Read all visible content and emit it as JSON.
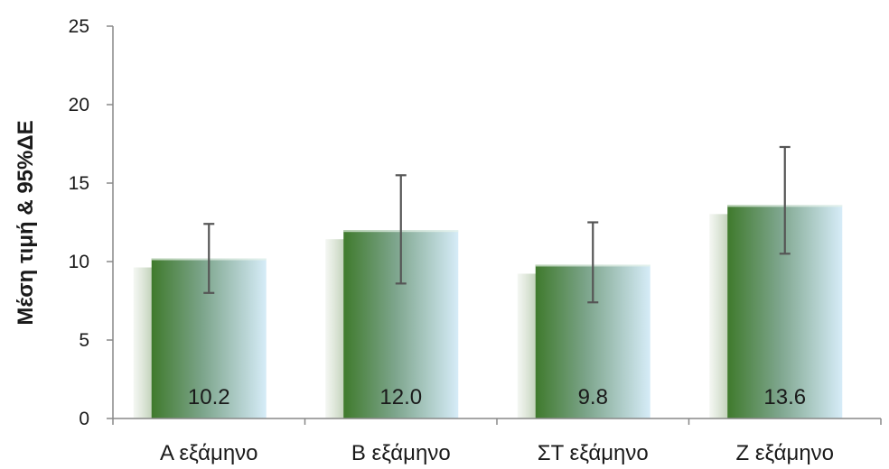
{
  "chart_data": {
    "type": "bar",
    "title": "",
    "xlabel": "",
    "ylabel": "Μέση τιμή & 95%ΔΕ",
    "ylim": [
      0,
      25
    ],
    "yticks": [
      0,
      5,
      10,
      15,
      20,
      25
    ],
    "grid": false,
    "legend": "none",
    "categories": [
      "Α εξάμηνο",
      "Β εξάμηνο",
      "ΣΤ εξάμηνο",
      "Ζ εξάμηνο"
    ],
    "values": [
      10.2,
      12.0,
      9.8,
      13.6
    ],
    "value_labels": [
      "10.2",
      "12.0",
      "9.8",
      "13.6"
    ],
    "error_low": [
      8.0,
      8.6,
      7.4,
      10.5
    ],
    "error_high": [
      12.4,
      15.5,
      12.5,
      17.3
    ],
    "colors": {
      "bar_dark": "#3f7a2c",
      "bar_light": "#d6ecf8",
      "error_bar": "#555555",
      "axis": "#888888"
    }
  }
}
